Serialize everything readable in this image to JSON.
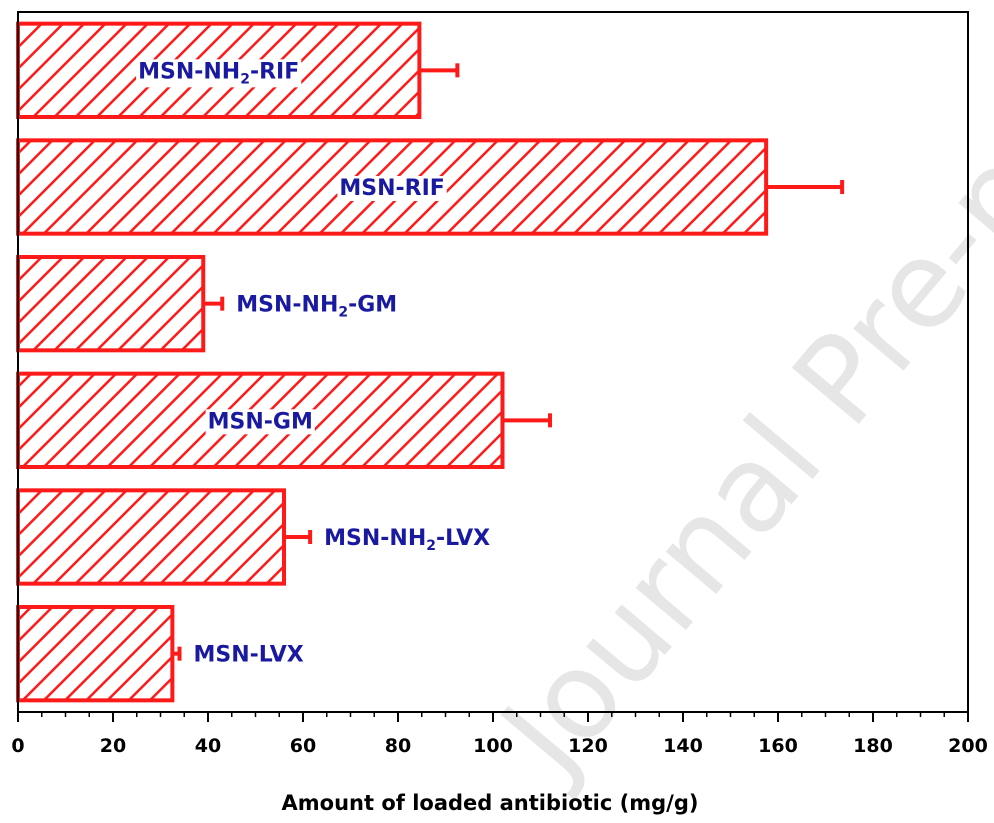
{
  "chart_data": {
    "type": "bar",
    "orientation": "horizontal",
    "xlabel": "Amount of loaded antibiotic (mg/g)",
    "xlim": [
      0,
      200
    ],
    "xticks": [
      0,
      20,
      40,
      60,
      80,
      100,
      120,
      140,
      160,
      180,
      200
    ],
    "grid": false,
    "bar_color": "#ff1a1a",
    "bar_pattern": "diagonal-hatch",
    "label_color": "#1a1aa0",
    "categories": [
      {
        "main": "MSN-NH",
        "sub": "2",
        "tail": "-RIF"
      },
      {
        "main": "MSN-RIF",
        "sub": "",
        "tail": ""
      },
      {
        "main": "MSN-NH",
        "sub": "2",
        "tail": "-GM"
      },
      {
        "main": "MSN-GM",
        "sub": "",
        "tail": ""
      },
      {
        "main": "MSN-NH",
        "sub": "2",
        "tail": "-LVX"
      },
      {
        "main": "MSN-LVX",
        "sub": "",
        "tail": ""
      }
    ],
    "values": [
      84.5,
      157.5,
      39,
      102,
      56,
      32.5
    ],
    "errors": [
      8,
      16,
      4,
      10,
      5.5,
      1.5
    ],
    "watermark": "Journal Pre-proof"
  }
}
